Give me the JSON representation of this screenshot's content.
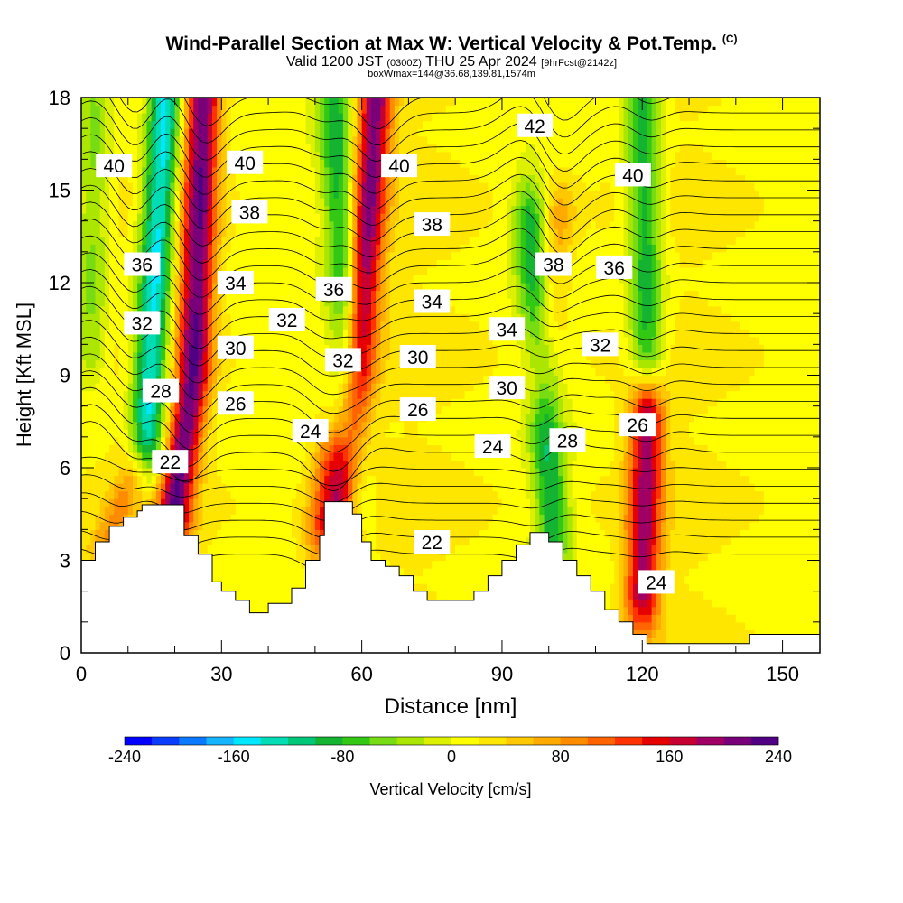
{
  "header": {
    "title": "Wind-Parallel Section at Max W: Vertical Velocity & Pot.Temp.",
    "title_mark": "(C)",
    "valid_prefix": "Valid 1200 JST",
    "valid_utc": "(0300Z)",
    "valid_date": "THU 25 Apr 2024",
    "forecast": "[9hrFcst@2142z]",
    "box_info": "boxWmax=144@36.68,139.81,1574m"
  },
  "chart_data": {
    "type": "heatmap",
    "title": "Wind-Parallel Section at Max W: Vertical Velocity & Pot.Temp.",
    "xlabel": "Distance [nm]",
    "ylabel": "Height [Kft MSL]",
    "xlim": [
      0,
      158
    ],
    "ylim": [
      0,
      18
    ],
    "x_ticks": [
      0,
      30,
      60,
      90,
      120,
      150
    ],
    "y_ticks": [
      0,
      3,
      6,
      9,
      12,
      15,
      18
    ],
    "colorbar": {
      "label": "Vertical Velocity [cm/s]",
      "min": -240,
      "max": 240,
      "step": 20,
      "ticks": [
        -240,
        -160,
        -80,
        0,
        80,
        160,
        240
      ],
      "colors": [
        "#0000ff",
        "#0a3cff",
        "#0a78ff",
        "#14b4ff",
        "#00e6ff",
        "#00dcb4",
        "#00c878",
        "#14b432",
        "#32c814",
        "#78dc14",
        "#aae600",
        "#dcf000",
        "#ffff00",
        "#ffe600",
        "#ffc800",
        "#ffaa00",
        "#ff8c00",
        "#ff6400",
        "#ff3200",
        "#e60000",
        "#c80032",
        "#a00064",
        "#780078",
        "#500082"
      ]
    },
    "updrafts": [
      {
        "x": [
          26,
          24,
          20
        ],
        "z": [
          18,
          9,
          4.8
        ],
        "peak": 200
      },
      {
        "x": [
          63,
          59,
          56
        ],
        "z": [
          18,
          9,
          4.5
        ],
        "peak": 190
      },
      {
        "x": [
          121,
          120
        ],
        "z": [
          7.5,
          2
        ],
        "peak": 170
      },
      {
        "x": [
          53,
          51
        ],
        "z": [
          6,
          4
        ],
        "peak": 90
      },
      {
        "x": [
          12,
          5
        ],
        "z": [
          6,
          3.5
        ],
        "peak": 60
      },
      {
        "x": [
          102,
          98
        ],
        "z": [
          14,
          9
        ],
        "peak": 60
      }
    ],
    "downdrafts": [
      {
        "x": [
          18,
          16,
          14
        ],
        "z": [
          18,
          13,
          7
        ],
        "peak": -170
      },
      {
        "x": [
          54,
          57,
          58
        ],
        "z": [
          18,
          10,
          5
        ],
        "peak": -110
      },
      {
        "x": [
          96,
          99,
          101
        ],
        "z": [
          14,
          8,
          4
        ],
        "peak": -110
      },
      {
        "x": [
          120,
          121
        ],
        "z": [
          18,
          10
        ],
        "peak": -110
      },
      {
        "x": [
          3,
          2
        ],
        "z": [
          18,
          10
        ],
        "peak": -60
      }
    ],
    "theta_labels": [
      {
        "text": "40",
        "x": 7,
        "z": 15.8
      },
      {
        "text": "40",
        "x": 35,
        "z": 15.9
      },
      {
        "text": "40",
        "x": 68,
        "z": 15.8
      },
      {
        "text": "40",
        "x": 118,
        "z": 15.5
      },
      {
        "text": "42",
        "x": 97,
        "z": 17.1
      },
      {
        "text": "38",
        "x": 36,
        "z": 14.3
      },
      {
        "text": "38",
        "x": 75,
        "z": 13.9
      },
      {
        "text": "38",
        "x": 101,
        "z": 12.6
      },
      {
        "text": "36",
        "x": 13,
        "z": 12.6
      },
      {
        "text": "36",
        "x": 54,
        "z": 11.8
      },
      {
        "text": "36",
        "x": 114,
        "z": 12.5
      },
      {
        "text": "34",
        "x": 33,
        "z": 12.0
      },
      {
        "text": "34",
        "x": 75,
        "z": 11.4
      },
      {
        "text": "34",
        "x": 91,
        "z": 10.5
      },
      {
        "text": "32",
        "x": 13,
        "z": 10.7
      },
      {
        "text": "32",
        "x": 44,
        "z": 10.8
      },
      {
        "text": "32",
        "x": 56,
        "z": 9.5
      },
      {
        "text": "32",
        "x": 111,
        "z": 10.0
      },
      {
        "text": "30",
        "x": 33,
        "z": 9.9
      },
      {
        "text": "30",
        "x": 72,
        "z": 9.6
      },
      {
        "text": "30",
        "x": 91,
        "z": 8.6
      },
      {
        "text": "28",
        "x": 17,
        "z": 8.5
      },
      {
        "text": "28",
        "x": 104,
        "z": 6.9
      },
      {
        "text": "26",
        "x": 33,
        "z": 8.1
      },
      {
        "text": "26",
        "x": 72,
        "z": 7.9
      },
      {
        "text": "26",
        "x": 119,
        "z": 7.4
      },
      {
        "text": "24",
        "x": 49,
        "z": 7.2
      },
      {
        "text": "24",
        "x": 88,
        "z": 6.7
      },
      {
        "text": "24",
        "x": 123,
        "z": 2.3
      },
      {
        "text": "22",
        "x": 19,
        "z": 6.2
      },
      {
        "text": "22",
        "x": 75,
        "z": 3.6
      }
    ],
    "terrain": [
      [
        0,
        3.0
      ],
      [
        3,
        3.0
      ],
      [
        3,
        3.6
      ],
      [
        6,
        3.6
      ],
      [
        6,
        4.1
      ],
      [
        9,
        4.1
      ],
      [
        9,
        4.4
      ],
      [
        12,
        4.4
      ],
      [
        12,
        4.6
      ],
      [
        13,
        4.6
      ],
      [
        13,
        4.8
      ],
      [
        22,
        4.8
      ],
      [
        22,
        3.8
      ],
      [
        25,
        3.8
      ],
      [
        25,
        3.2
      ],
      [
        28,
        3.2
      ],
      [
        28,
        2.3
      ],
      [
        30,
        2.3
      ],
      [
        30,
        2.0
      ],
      [
        33,
        2.0
      ],
      [
        33,
        1.7
      ],
      [
        36,
        1.7
      ],
      [
        36,
        1.3
      ],
      [
        40,
        1.3
      ],
      [
        40,
        1.6
      ],
      [
        45,
        1.6
      ],
      [
        45,
        2.1
      ],
      [
        48,
        2.1
      ],
      [
        48,
        3.0
      ],
      [
        51,
        3.0
      ],
      [
        51,
        3.8
      ],
      [
        52,
        3.8
      ],
      [
        52,
        4.9
      ],
      [
        58,
        4.9
      ],
      [
        58,
        4.5
      ],
      [
        60,
        4.5
      ],
      [
        60,
        3.6
      ],
      [
        62,
        3.6
      ],
      [
        62,
        3.0
      ],
      [
        65,
        3.0
      ],
      [
        65,
        2.8
      ],
      [
        68,
        2.8
      ],
      [
        68,
        2.5
      ],
      [
        71,
        2.5
      ],
      [
        71,
        2.0
      ],
      [
        74,
        2.0
      ],
      [
        74,
        1.7
      ],
      [
        84,
        1.7
      ],
      [
        84,
        2.0
      ],
      [
        87,
        2.0
      ],
      [
        87,
        2.5
      ],
      [
        90,
        2.5
      ],
      [
        90,
        3.0
      ],
      [
        93,
        3.0
      ],
      [
        93,
        3.5
      ],
      [
        96,
        3.5
      ],
      [
        96,
        3.9
      ],
      [
        100,
        3.9
      ],
      [
        100,
        3.6
      ],
      [
        103,
        3.6
      ],
      [
        103,
        3.0
      ],
      [
        106,
        3.0
      ],
      [
        106,
        2.5
      ],
      [
        109,
        2.5
      ],
      [
        109,
        2.0
      ],
      [
        112,
        2.0
      ],
      [
        112,
        1.4
      ],
      [
        115,
        1.4
      ],
      [
        115,
        1.0
      ],
      [
        118,
        1.0
      ],
      [
        118,
        0.6
      ],
      [
        121,
        0.6
      ],
      [
        121,
        0.3
      ],
      [
        143,
        0.3
      ],
      [
        143,
        0.6
      ],
      [
        158,
        0.6
      ]
    ]
  }
}
